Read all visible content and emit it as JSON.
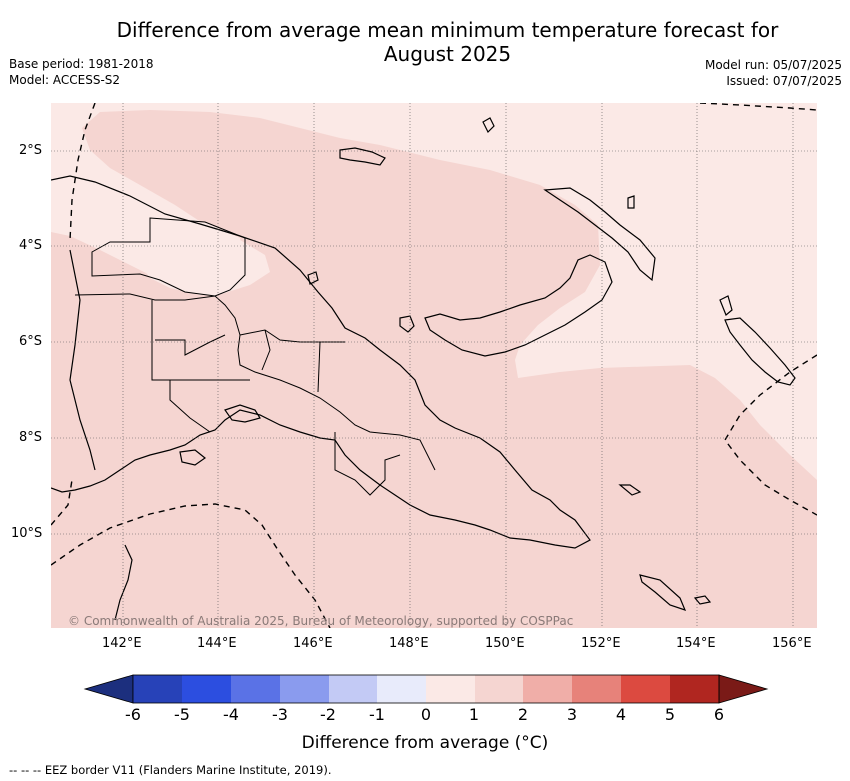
{
  "header": {
    "title_line1": "Difference from average mean minimum temperature forecast for",
    "title_line2": "August 2025",
    "base_period": "Base period: 1981-2018",
    "model": "Model: ACCESS-S2",
    "model_run": "Model run: 05/07/2025",
    "issued": "Issued: 07/07/2025"
  },
  "map": {
    "lat_labels": [
      "2°S",
      "4°S",
      "6°S",
      "8°S",
      "10°S"
    ],
    "lon_labels": [
      "142°E",
      "144°E",
      "146°E",
      "148°E",
      "150°E",
      "152°E",
      "154°E",
      "156°E"
    ],
    "credit": "© Commonwealth of Australia 2025, Bureau of Meteorology, supported by COSPPac",
    "colors": {
      "anomaly_0_1": "#fbe9e6",
      "anomaly_1_2": "#f5d5d1"
    }
  },
  "colorbar": {
    "ticks": [
      "-6",
      "-5",
      "-4",
      "-3",
      "-2",
      "-1",
      "0",
      "1",
      "2",
      "3",
      "4",
      "5",
      "6"
    ],
    "label": "Difference from average (°C)",
    "colors": [
      "#1c2f7e",
      "#2742b8",
      "#2c4ee0",
      "#5a72e6",
      "#8a9bee",
      "#c3caf5",
      "#e8ebfb",
      "#fbe9e6",
      "#f5d5d1",
      "#f0aea8",
      "#e7827a",
      "#dc4a40",
      "#b02620",
      "#7a1a17"
    ]
  },
  "footnote": "-- -- -- EEZ border V11 (Flanders Marine Institute, 2019)."
}
